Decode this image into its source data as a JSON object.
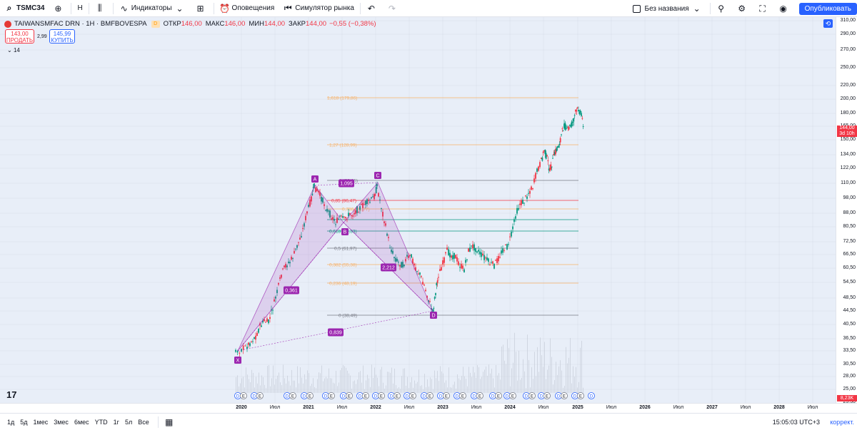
{
  "topbar": {
    "symbol": "TSMC34",
    "interval": "Н",
    "indicators_label": "Индикаторы",
    "alerts_label": "Оповещения",
    "replay_label": "Симулятор рынка",
    "layout_name": "Без названия",
    "publish_label": "Опубликовать"
  },
  "legend": {
    "title": "TAIWANSMFAC DRN · 1H · BMFBOVESPA",
    "open_label": "ОТКР",
    "open_value": "146,00",
    "high_label": "МАКС",
    "high_value": "146,00",
    "low_label": "МИН",
    "low_value": "144,00",
    "close_label": "ЗАКР",
    "close_value": "144,00",
    "change": "−0,55 (−0,38%)",
    "badge": "D"
  },
  "trade": {
    "sell_price": "143,00",
    "sell_label": "ПРОДАТЬ",
    "spread": "2,99",
    "buy_price": "145,99",
    "buy_label": "КУПИТЬ"
  },
  "indicators_count": "14",
  "price_axis": [
    "310,00",
    "290,00",
    "270,00",
    "250,00",
    "220,00",
    "200,00",
    "180,00",
    "165,00",
    "150,00",
    "134,00",
    "122,00",
    "110,00",
    "98,00",
    "88,00",
    "80,50",
    "72,50",
    "66,50",
    "60,50",
    "54,50",
    "48,50",
    "44,50",
    "40,50",
    "36,50",
    "33,50",
    "30,50",
    "28,00",
    "25,00",
    "23,30",
    "21,00"
  ],
  "current_price": "144,00",
  "countdown": "3d 10h",
  "volume_badge": "8,23K",
  "time_axis": [
    {
      "label": "2020",
      "bold": true
    },
    {
      "label": "Июл",
      "bold": false
    },
    {
      "label": "2021",
      "bold": true
    },
    {
      "label": "Июл",
      "bold": false
    },
    {
      "label": "2022",
      "bold": true
    },
    {
      "label": "Июл",
      "bold": false
    },
    {
      "label": "2023",
      "bold": true
    },
    {
      "label": "Июл",
      "bold": false
    },
    {
      "label": "2024",
      "bold": true
    },
    {
      "label": "Июл",
      "bold": false
    },
    {
      "label": "2025",
      "bold": true
    },
    {
      "label": "Июл",
      "bold": false
    },
    {
      "label": "2026",
      "bold": true
    },
    {
      "label": "Июл",
      "bold": false
    },
    {
      "label": "2027",
      "bold": true
    },
    {
      "label": "Июл",
      "bold": false
    },
    {
      "label": "2028",
      "bold": true
    },
    {
      "label": "Июл",
      "bold": false
    }
  ],
  "fib_levels": [
    {
      "label": "1,618 (179,86)",
      "color": "#f7b26a"
    },
    {
      "label": "1,27 (128,99)",
      "color": "#f7b26a"
    },
    {
      "label": "1 (98,15)",
      "color": "#787b86"
    },
    {
      "label": "0,85 (86,47)",
      "color": "#f23645"
    },
    {
      "label": "0,786 (81,77)",
      "color": "#f7b26a"
    },
    {
      "label": "0,618 (69,33)",
      "color": "#089981"
    },
    {
      "label": "0,5 (61,97)",
      "color": "#787b86"
    },
    {
      "label": "0,382 (55,38)",
      "color": "#f7b26a"
    },
    {
      "label": "0,236 (48,19)",
      "color": "#f7b26a"
    },
    {
      "label": "0 (38,49)",
      "color": "#787b86"
    }
  ],
  "pattern_points": [
    "X",
    "A",
    "B",
    "C",
    "D"
  ],
  "pattern_ratios": [
    "0,361",
    "1,095",
    "2,212",
    "0,839"
  ],
  "bottombar": {
    "ranges": [
      "1д",
      "5д",
      "1мес",
      "3мес",
      "6мес",
      "YTD",
      "1г",
      "5л",
      "Все"
    ],
    "clock": "15:05:03 UTC+3",
    "adjust": "коррект."
  },
  "colors": {
    "up": "#089981",
    "down": "#f23645",
    "pattern": "#9c27b0",
    "accent": "#2962ff"
  }
}
